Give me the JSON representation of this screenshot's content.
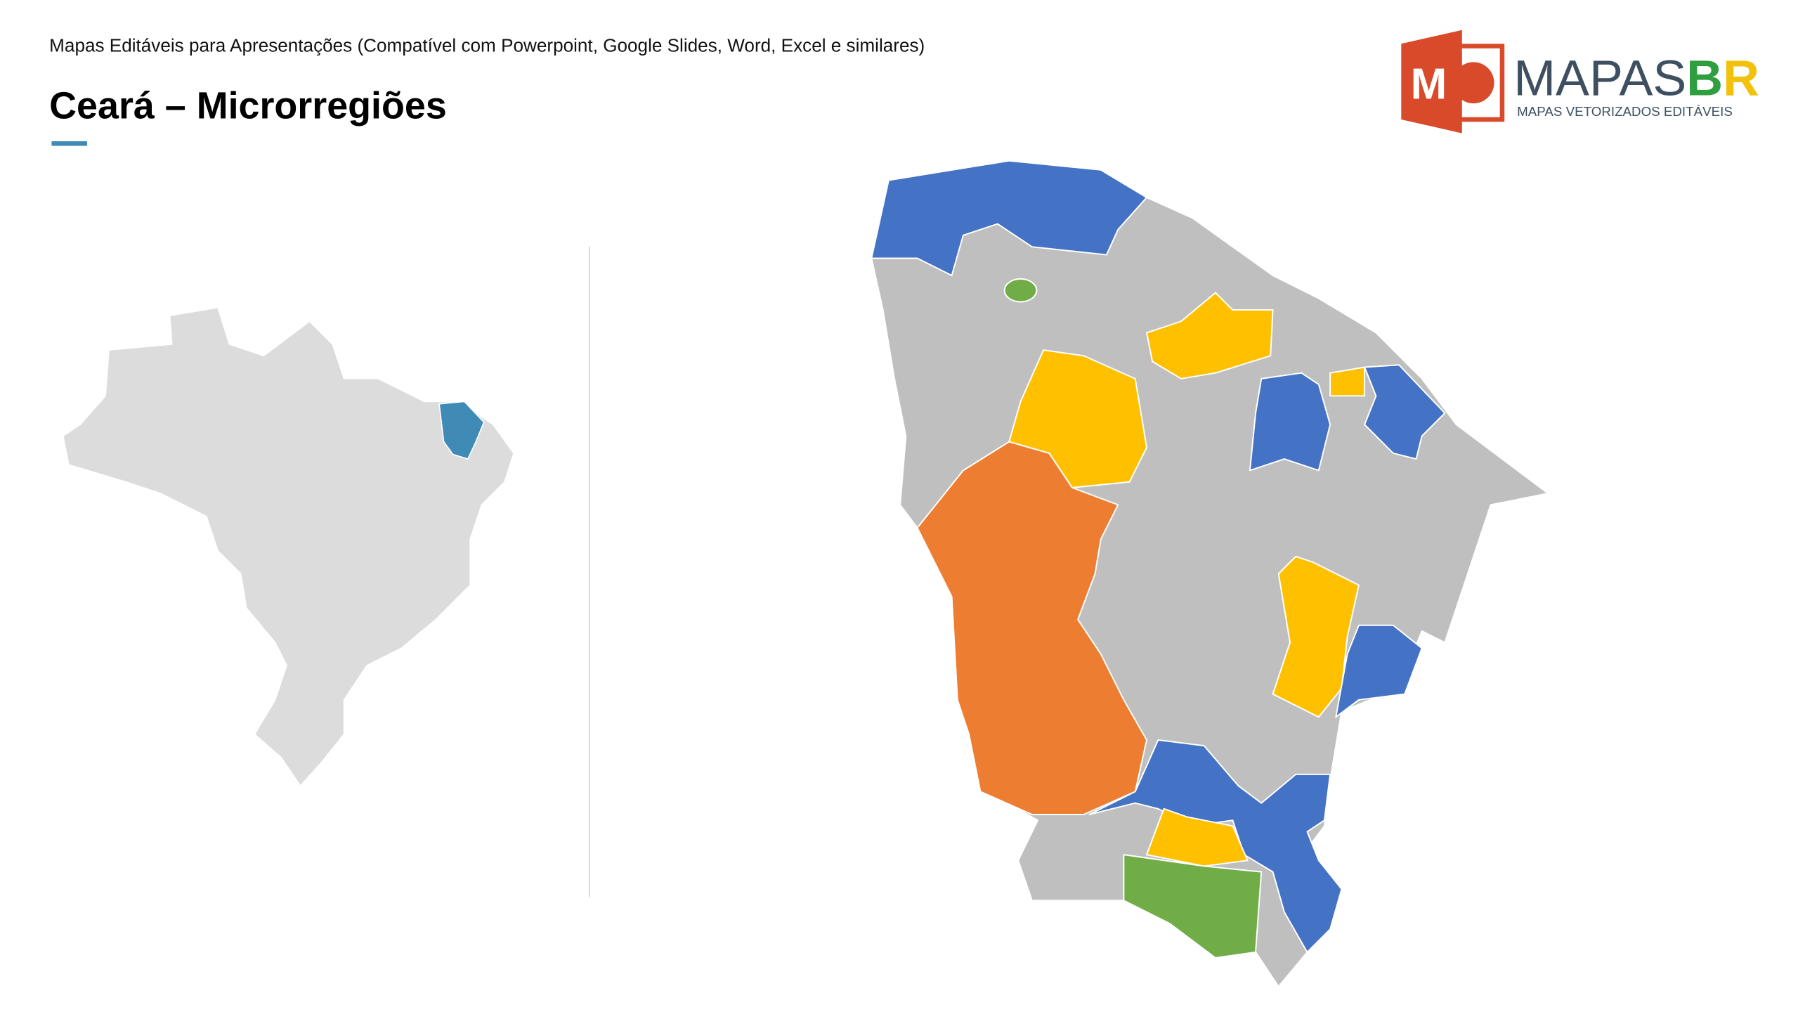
{
  "header": {
    "subtitle": "Mapas Editáveis para Apresentações (Compatível com Powerpoint, Google Slides, Word, Excel e similares)",
    "title": "Ceará – Microrregiões"
  },
  "logo": {
    "icon_letter": "M",
    "brand": [
      "MAPAS",
      "B",
      "R"
    ],
    "tagline": "MAPAS VETORIZADOS EDITÁVEIS"
  }
}
